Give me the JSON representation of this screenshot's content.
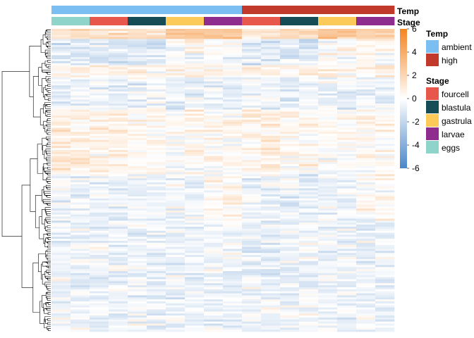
{
  "chart_data": {
    "type": "heatmap",
    "columns": 18,
    "rows": 150,
    "annotation_tracks": [
      {
        "name": "Temp",
        "column_values": [
          "ambient",
          "ambient",
          "ambient",
          "ambient",
          "ambient",
          "ambient",
          "ambient",
          "ambient",
          "ambient",
          "ambient",
          "high",
          "high",
          "high",
          "high",
          "high",
          "high",
          "high",
          "high"
        ]
      },
      {
        "name": "Stage",
        "column_values": [
          "eggs",
          "eggs",
          "fourcell",
          "fourcell",
          "blastula",
          "blastula",
          "gastrula",
          "gastrula",
          "larvae",
          "larvae",
          "fourcell",
          "fourcell",
          "blastula",
          "blastula",
          "gastrula",
          "gastrula",
          "larvae",
          "larvae"
        ]
      }
    ],
    "color_scale": {
      "min": -6,
      "max": 6,
      "ticks": [
        "6",
        "4",
        "2",
        "0",
        "-2",
        "-4",
        "-6"
      ],
      "colors": [
        "#4a86c8",
        "#ffffff",
        "#f4841f"
      ]
    },
    "legend": {
      "temp": {
        "title": "Temp",
        "items": [
          {
            "label": "ambient",
            "color": "#7bbff2"
          },
          {
            "label": "high",
            "color": "#c0392b"
          }
        ]
      },
      "stage": {
        "title": "Stage",
        "items": [
          {
            "label": "fourcell",
            "color": "#e8574b"
          },
          {
            "label": "blastula",
            "color": "#164c56"
          },
          {
            "label": "gastrula",
            "color": "#fbca59"
          },
          {
            "label": "larvae",
            "color": "#8e2d8e"
          },
          {
            "label": "eggs",
            "color": "#8fd4cb"
          }
        ]
      }
    },
    "row_dendrogram": true,
    "column_dendrogram": false
  }
}
